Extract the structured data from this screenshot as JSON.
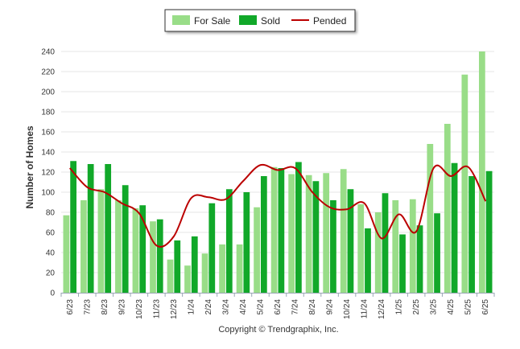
{
  "chart_data": {
    "type": "bar",
    "ylabel": "Number of Homes",
    "ylim": [
      0,
      240
    ],
    "yticks": [
      0,
      20,
      40,
      60,
      80,
      100,
      120,
      140,
      160,
      180,
      200,
      220,
      240
    ],
    "grid": true,
    "legend_position": "top-center",
    "categories": [
      "6/23",
      "7/23",
      "8/23",
      "9/23",
      "10/23",
      "11/23",
      "12/23",
      "1/24",
      "2/24",
      "3/24",
      "4/24",
      "5/24",
      "6/24",
      "7/24",
      "8/24",
      "9/24",
      "10/24",
      "11/24",
      "12/24",
      "1/25",
      "2/25",
      "3/25",
      "4/25",
      "5/25",
      "6/25"
    ],
    "series": [
      {
        "name": "For Sale",
        "type": "bar",
        "color": "#99dd88",
        "values": [
          77,
          92,
          103,
          92,
          84,
          71,
          33,
          27,
          39,
          48,
          48,
          85,
          125,
          118,
          117,
          119,
          123,
          88,
          80,
          92,
          93,
          148,
          168,
          217,
          240
        ]
      },
      {
        "name": "Sold",
        "type": "bar",
        "color": "#11a829",
        "values": [
          131,
          128,
          128,
          107,
          87,
          73,
          52,
          56,
          89,
          103,
          100,
          116,
          124,
          130,
          111,
          92,
          103,
          64,
          99,
          58,
          67,
          79,
          129,
          116,
          121
        ]
      },
      {
        "name": "Pended",
        "type": "line",
        "color": "#bb0000",
        "values": [
          124,
          105,
          100,
          89,
          79,
          47,
          56,
          94,
          95,
          93,
          111,
          127,
          122,
          124,
          100,
          85,
          83,
          89,
          54,
          78,
          61,
          124,
          116,
          125,
          91
        ]
      }
    ]
  },
  "footer": {
    "copyright": "Copyright © Trendgraphix, Inc."
  }
}
